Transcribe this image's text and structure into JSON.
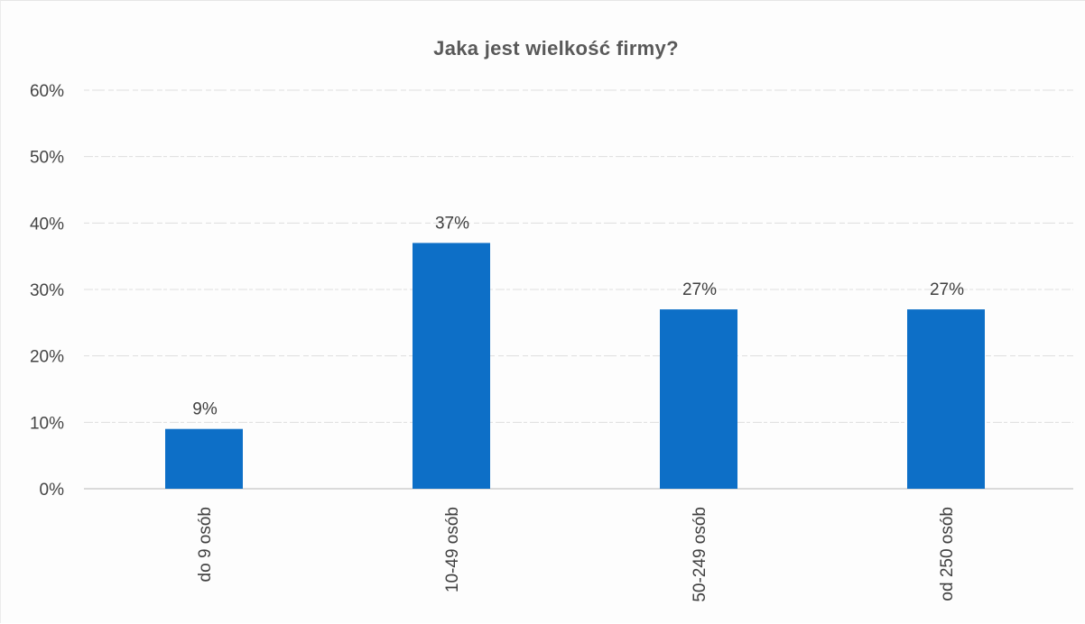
{
  "chart_data": {
    "type": "bar",
    "title": "Jaka jest wielkość firmy?",
    "categories": [
      "do 9 osób",
      "10-49 osób",
      "50-249 osób",
      "od 250 osób"
    ],
    "values": [
      9,
      37,
      27,
      27
    ],
    "data_labels": [
      "9%",
      "37%",
      "27%",
      "27%"
    ],
    "y_ticks": [
      "0%",
      "10%",
      "20%",
      "30%",
      "40%",
      "50%",
      "60%"
    ],
    "ylim": [
      0,
      60
    ],
    "grid": true,
    "legend": "none",
    "bar_color": "#0d6fc7",
    "category_label_rotation": "vertical"
  }
}
